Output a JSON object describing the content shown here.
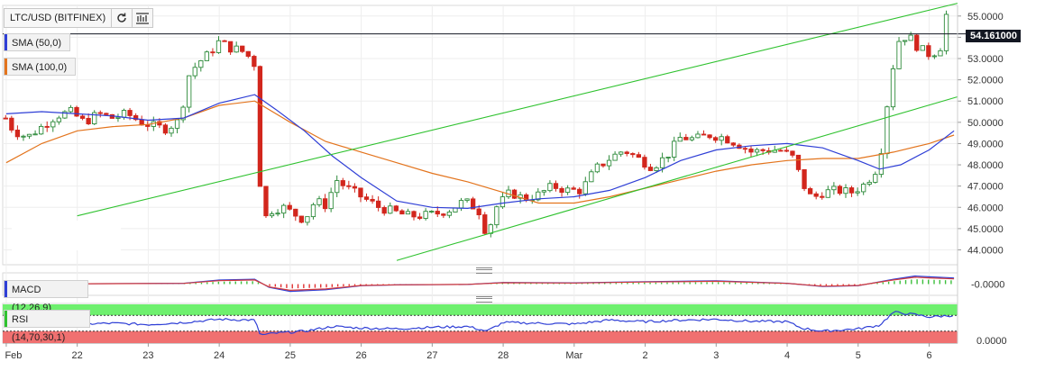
{
  "symbol": "LTC/USD (BITFINEX)",
  "indicators": {
    "sma50": {
      "label": "SMA (50,0)",
      "color": "#2f3fd6"
    },
    "sma100": {
      "label": "SMA (100,0)",
      "color": "#e3741d"
    },
    "macd": {
      "label": "MACD (12,26,9)",
      "value_label": "-0.0000"
    },
    "rsi": {
      "label": "RSI (14,70,30,1)",
      "value_label": "0.0000"
    }
  },
  "current_price_label": "54.161000",
  "colors": {
    "up": "#2e8b3b",
    "down": "#d2261d",
    "trendline": "#2fc22f",
    "rsi_overbought": "#6ef06e",
    "rsi_oversold": "#f07070",
    "rsi_line": "#2f3fd6",
    "accent": "#131722"
  },
  "chart_data": {
    "type": "candlestick",
    "title": "LTC/USD (BITFINEX)",
    "y_axis": {
      "ylim": [
        43.3,
        55.5
      ],
      "ticks": [
        "55.0000",
        "54.0000",
        "53.0000",
        "52.0000",
        "51.0000",
        "50.0000",
        "49.0000",
        "48.0000",
        "47.0000",
        "46.0000",
        "45.0000",
        "44.0000"
      ]
    },
    "x_axis": {
      "ticks": [
        "Feb",
        "22",
        "23",
        "24",
        "25",
        "26",
        "27",
        "28",
        "Mar",
        "2",
        "3",
        "4",
        "5",
        "6"
      ]
    },
    "x_tick_days": [
      21,
      22,
      23,
      24,
      25,
      26,
      27,
      28,
      29,
      30,
      31,
      32,
      33,
      34
    ],
    "day_range": [
      20.95,
      34.4
    ],
    "close_path": [
      [
        21.0,
        50.2
      ],
      [
        21.1,
        49.6
      ],
      [
        21.3,
        49.3
      ],
      [
        21.5,
        49.8
      ],
      [
        21.7,
        50.3
      ],
      [
        21.9,
        50.5
      ],
      [
        22.1,
        50.0
      ],
      [
        22.3,
        50.4
      ],
      [
        22.5,
        50.2
      ],
      [
        22.7,
        50.4
      ],
      [
        22.9,
        50.0
      ],
      [
        23.1,
        49.8
      ],
      [
        23.25,
        49.7
      ],
      [
        23.45,
        50.1
      ],
      [
        23.55,
        52.1
      ],
      [
        23.7,
        52.8
      ],
      [
        23.85,
        53.2
      ],
      [
        24.0,
        53.8
      ],
      [
        24.15,
        53.5
      ],
      [
        24.3,
        53.4
      ],
      [
        24.45,
        53.0
      ],
      [
        24.55,
        52.4
      ],
      [
        24.58,
        46.1
      ],
      [
        24.62,
        45.4
      ],
      [
        24.75,
        45.9
      ],
      [
        24.9,
        46.0
      ],
      [
        25.05,
        45.7
      ],
      [
        25.2,
        45.4
      ],
      [
        25.35,
        46.3
      ],
      [
        25.5,
        46.1
      ],
      [
        25.65,
        47.3
      ],
      [
        25.8,
        46.9
      ],
      [
        25.95,
        46.6
      ],
      [
        26.1,
        46.3
      ],
      [
        26.25,
        46.0
      ],
      [
        26.45,
        45.8
      ],
      [
        26.65,
        45.6
      ],
      [
        26.85,
        45.6
      ],
      [
        27.05,
        45.7
      ],
      [
        27.25,
        45.9
      ],
      [
        27.45,
        46.3
      ],
      [
        27.65,
        45.9
      ],
      [
        27.77,
        44.7
      ],
      [
        27.9,
        46.0
      ],
      [
        28.1,
        46.7
      ],
      [
        28.3,
        46.4
      ],
      [
        28.5,
        46.6
      ],
      [
        28.7,
        47.0
      ],
      [
        28.9,
        46.8
      ],
      [
        29.1,
        46.8
      ],
      [
        29.3,
        47.8
      ],
      [
        29.5,
        48.3
      ],
      [
        29.7,
        48.7
      ],
      [
        29.9,
        48.3
      ],
      [
        30.1,
        47.9
      ],
      [
        30.3,
        48.4
      ],
      [
        30.5,
        49.3
      ],
      [
        30.7,
        49.2
      ],
      [
        30.9,
        49.4
      ],
      [
        31.1,
        49.3
      ],
      [
        31.3,
        49.0
      ],
      [
        31.5,
        48.6
      ],
      [
        31.7,
        48.7
      ],
      [
        31.9,
        48.7
      ],
      [
        32.1,
        48.3
      ],
      [
        32.2,
        47.2
      ],
      [
        32.35,
        46.4
      ],
      [
        32.5,
        46.7
      ],
      [
        32.7,
        46.8
      ],
      [
        32.9,
        46.7
      ],
      [
        33.1,
        47.1
      ],
      [
        33.3,
        48.0
      ],
      [
        33.35,
        49.5
      ],
      [
        33.45,
        51.8
      ],
      [
        33.55,
        53.8
      ],
      [
        33.7,
        54.1
      ],
      [
        33.85,
        53.5
      ],
      [
        34.0,
        53.2
      ],
      [
        34.15,
        53.4
      ],
      [
        34.25,
        55.2
      ],
      [
        34.32,
        54.16
      ]
    ],
    "sma50": [
      [
        21.0,
        50.4
      ],
      [
        21.5,
        50.5
      ],
      [
        22.0,
        50.4
      ],
      [
        22.5,
        50.3
      ],
      [
        23.0,
        50.1
      ],
      [
        23.5,
        50.2
      ],
      [
        24.0,
        50.9
      ],
      [
        24.5,
        51.3
      ],
      [
        24.8,
        50.6
      ],
      [
        25.2,
        49.6
      ],
      [
        25.6,
        48.4
      ],
      [
        26.0,
        47.4
      ],
      [
        26.5,
        46.3
      ],
      [
        27.0,
        46.0
      ],
      [
        27.5,
        45.95
      ],
      [
        28.0,
        46.2
      ],
      [
        28.5,
        46.4
      ],
      [
        29.0,
        46.5
      ],
      [
        29.5,
        46.8
      ],
      [
        30.0,
        47.4
      ],
      [
        30.5,
        48.2
      ],
      [
        31.0,
        48.7
      ],
      [
        31.5,
        48.9
      ],
      [
        32.0,
        49.0
      ],
      [
        32.5,
        48.8
      ],
      [
        33.0,
        48.2
      ],
      [
        33.3,
        47.8
      ],
      [
        33.6,
        48.0
      ],
      [
        34.0,
        48.7
      ],
      [
        34.35,
        49.6
      ]
    ],
    "sma100": [
      [
        21.0,
        48.1
      ],
      [
        21.5,
        49.0
      ],
      [
        22.0,
        49.6
      ],
      [
        22.5,
        49.8
      ],
      [
        23.0,
        49.9
      ],
      [
        23.5,
        50.2
      ],
      [
        24.0,
        50.8
      ],
      [
        24.5,
        51.0
      ],
      [
        25.0,
        50.0
      ],
      [
        25.5,
        49.1
      ],
      [
        26.0,
        48.6
      ],
      [
        26.5,
        48.1
      ],
      [
        27.0,
        47.6
      ],
      [
        27.5,
        47.2
      ],
      [
        28.0,
        46.7
      ],
      [
        28.5,
        46.2
      ],
      [
        29.0,
        46.2
      ],
      [
        29.5,
        46.5
      ],
      [
        30.0,
        46.9
      ],
      [
        30.5,
        47.3
      ],
      [
        31.0,
        47.7
      ],
      [
        31.5,
        48.0
      ],
      [
        32.0,
        48.2
      ],
      [
        32.5,
        48.3
      ],
      [
        33.0,
        48.3
      ],
      [
        33.5,
        48.6
      ],
      [
        34.0,
        49.0
      ],
      [
        34.35,
        49.4
      ]
    ],
    "trendlines": [
      {
        "from": [
          22.0,
          45.6
        ],
        "to": [
          34.4,
          55.6
        ]
      },
      {
        "from": [
          26.5,
          43.5
        ],
        "to": [
          34.4,
          51.2
        ]
      }
    ],
    "horizontal_line": 54.16,
    "rsi_path": [
      [
        21.0,
        45
      ],
      [
        21.5,
        52
      ],
      [
        22.0,
        48
      ],
      [
        22.5,
        50
      ],
      [
        23.0,
        47
      ],
      [
        23.5,
        52
      ],
      [
        24.0,
        60
      ],
      [
        24.5,
        58
      ],
      [
        24.58,
        20
      ],
      [
        24.8,
        25
      ],
      [
        25.2,
        30
      ],
      [
        25.6,
        42
      ],
      [
        26.0,
        38
      ],
      [
        26.5,
        36
      ],
      [
        27.0,
        40
      ],
      [
        27.5,
        42
      ],
      [
        27.77,
        30
      ],
      [
        28.0,
        52
      ],
      [
        28.5,
        50
      ],
      [
        29.0,
        48
      ],
      [
        29.5,
        58
      ],
      [
        30.0,
        54
      ],
      [
        30.5,
        58
      ],
      [
        31.0,
        60
      ],
      [
        31.5,
        55
      ],
      [
        32.0,
        54
      ],
      [
        32.2,
        38
      ],
      [
        32.5,
        30
      ],
      [
        33.0,
        36
      ],
      [
        33.3,
        45
      ],
      [
        33.5,
        78
      ],
      [
        33.8,
        72
      ],
      [
        34.0,
        66
      ],
      [
        34.35,
        70
      ]
    ],
    "macd_path": [
      [
        21.0,
        0.0
      ],
      [
        23.5,
        0.05
      ],
      [
        24.0,
        0.25
      ],
      [
        24.5,
        0.3
      ],
      [
        24.7,
        -0.2
      ],
      [
        25.0,
        -0.45
      ],
      [
        25.5,
        -0.35
      ],
      [
        26.0,
        -0.1
      ],
      [
        26.5,
        -0.05
      ],
      [
        27.5,
        -0.02
      ],
      [
        28.0,
        0.1
      ],
      [
        29.0,
        0.08
      ],
      [
        30.0,
        0.15
      ],
      [
        31.0,
        0.2
      ],
      [
        32.0,
        0.05
      ],
      [
        32.5,
        -0.15
      ],
      [
        33.0,
        -0.1
      ],
      [
        33.5,
        0.3
      ],
      [
        33.8,
        0.5
      ],
      [
        34.0,
        0.45
      ],
      [
        34.35,
        0.38
      ]
    ]
  }
}
